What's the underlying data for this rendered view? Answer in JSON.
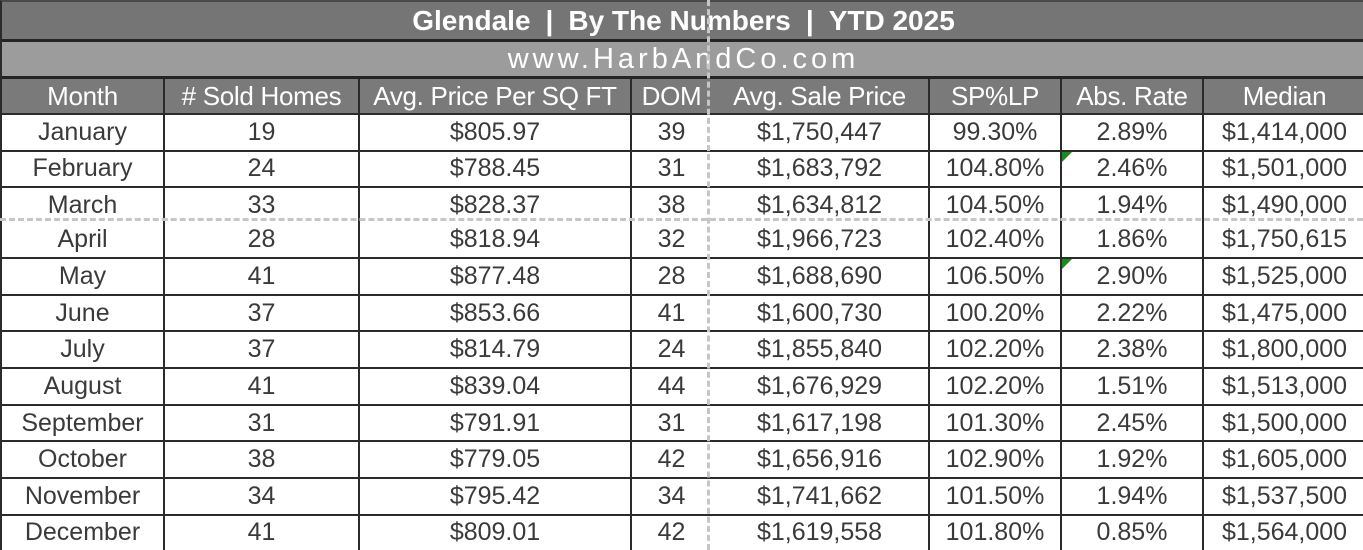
{
  "header": {
    "title_segments": [
      "Glendale",
      "By The Numbers",
      "YTD 2025"
    ],
    "separator": "|",
    "website": "www.HarbAndCo.com"
  },
  "table": {
    "columns": [
      "Month",
      "# Sold Homes",
      "Avg. Price Per SQ FT",
      "DOM",
      "Avg. Sale Price",
      "SP%LP",
      "Abs. Rate",
      "Median"
    ],
    "column_keys": [
      "month",
      "sold_homes",
      "avg_price_sqft",
      "dom",
      "avg_sale_price",
      "sp_lp",
      "abs_rate",
      "median"
    ],
    "rows": [
      {
        "month": "January",
        "sold_homes": "19",
        "avg_price_sqft": "$805.97",
        "dom": "39",
        "avg_sale_price": "$1,750,447",
        "sp_lp": "99.30%",
        "abs_rate": "2.89%",
        "median": "$1,414,000",
        "error_indicator": false
      },
      {
        "month": "February",
        "sold_homes": "24",
        "avg_price_sqft": "$788.45",
        "dom": "31",
        "avg_sale_price": "$1,683,792",
        "sp_lp": "104.80%",
        "abs_rate": "2.46%",
        "median": "$1,501,000",
        "error_indicator": true
      },
      {
        "month": "March",
        "sold_homes": "33",
        "avg_price_sqft": "$828.37",
        "dom": "38",
        "avg_sale_price": "$1,634,812",
        "sp_lp": "104.50%",
        "abs_rate": "1.94%",
        "median": "$1,490,000",
        "error_indicator": false
      },
      {
        "month": "April",
        "sold_homes": "28",
        "avg_price_sqft": "$818.94",
        "dom": "32",
        "avg_sale_price": "$1,966,723",
        "sp_lp": "102.40%",
        "abs_rate": "1.86%",
        "median": "$1,750,615",
        "error_indicator": false
      },
      {
        "month": "May",
        "sold_homes": "41",
        "avg_price_sqft": "$877.48",
        "dom": "28",
        "avg_sale_price": "$1,688,690",
        "sp_lp": "106.50%",
        "abs_rate": "2.90%",
        "median": "$1,525,000",
        "error_indicator": true
      },
      {
        "month": "June",
        "sold_homes": "37",
        "avg_price_sqft": "$853.66",
        "dom": "41",
        "avg_sale_price": "$1,600,730",
        "sp_lp": "100.20%",
        "abs_rate": "2.22%",
        "median": "$1,475,000",
        "error_indicator": false
      },
      {
        "month": "July",
        "sold_homes": "37",
        "avg_price_sqft": "$814.79",
        "dom": "24",
        "avg_sale_price": "$1,855,840",
        "sp_lp": "102.20%",
        "abs_rate": "2.38%",
        "median": "$1,800,000",
        "error_indicator": false
      },
      {
        "month": "August",
        "sold_homes": "41",
        "avg_price_sqft": "$839.04",
        "dom": "44",
        "avg_sale_price": "$1,676,929",
        "sp_lp": "102.20%",
        "abs_rate": "1.51%",
        "median": "$1,513,000",
        "error_indicator": false
      },
      {
        "month": "September",
        "sold_homes": "31",
        "avg_price_sqft": "$791.91",
        "dom": "31",
        "avg_sale_price": "$1,617,198",
        "sp_lp": "101.30%",
        "abs_rate": "2.45%",
        "median": "$1,500,000",
        "error_indicator": false
      },
      {
        "month": "October",
        "sold_homes": "38",
        "avg_price_sqft": "$779.05",
        "dom": "42",
        "avg_sale_price": "$1,656,916",
        "sp_lp": "102.90%",
        "abs_rate": "1.92%",
        "median": "$1,605,000",
        "error_indicator": false
      },
      {
        "month": "November",
        "sold_homes": "34",
        "avg_price_sqft": "$795.42",
        "dom": "34",
        "avg_sale_price": "$1,741,662",
        "sp_lp": "101.50%",
        "abs_rate": "1.94%",
        "median": "$1,537,500",
        "error_indicator": false
      },
      {
        "month": "December",
        "sold_homes": "41",
        "avg_price_sqft": "$809.01",
        "dom": "42",
        "avg_sale_price": "$1,619,558",
        "sp_lp": "101.80%",
        "abs_rate": "0.85%",
        "median": "$1,564,000",
        "error_indicator": false
      }
    ]
  },
  "colors": {
    "title_bg": "#757575",
    "subtitle_bg": "#9c9c9c",
    "header_bg": "#7a7a7a",
    "grid_border": "#2b2b2b",
    "page_break_dash": "#c6c6c6",
    "error_green": "#1c8a1c",
    "data_text": "#3a3a3a",
    "header_text": "#ffffff"
  }
}
